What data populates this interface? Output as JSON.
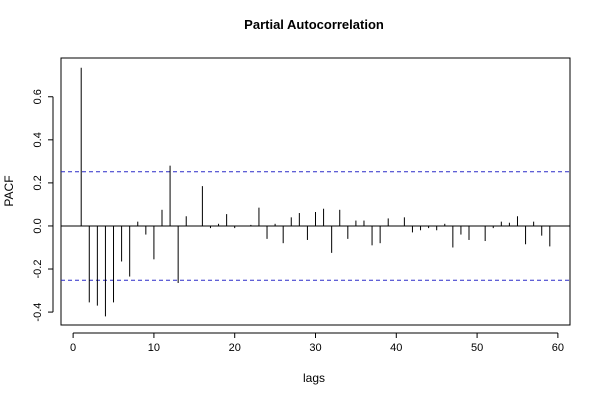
{
  "chart_data": {
    "type": "bar",
    "title": "Partial Autocorrelation",
    "xlabel": "lags",
    "ylabel": "PACF",
    "xlim": [
      -1.5,
      61.5
    ],
    "ylim": [
      -0.46,
      0.78
    ],
    "xticks": [
      0,
      10,
      20,
      30,
      40,
      50,
      60
    ],
    "yticks": [
      -0.4,
      -0.2,
      0.0,
      0.2,
      0.4,
      0.6
    ],
    "x": [
      1,
      2,
      3,
      4,
      5,
      6,
      7,
      8,
      9,
      10,
      11,
      12,
      13,
      14,
      15,
      16,
      17,
      18,
      19,
      20,
      21,
      22,
      23,
      24,
      25,
      26,
      27,
      28,
      29,
      30,
      31,
      32,
      33,
      34,
      35,
      36,
      37,
      38,
      39,
      40,
      41,
      42,
      43,
      44,
      45,
      46,
      47,
      48,
      49,
      50,
      51,
      52,
      53,
      54,
      55,
      56,
      57,
      58,
      59
    ],
    "values": [
      0.735,
      -0.355,
      -0.37,
      -0.42,
      -0.355,
      -0.165,
      -0.235,
      0.02,
      -0.04,
      -0.155,
      0.075,
      0.28,
      -0.265,
      0.045,
      0.0,
      0.185,
      -0.01,
      0.01,
      0.055,
      -0.01,
      0.0,
      0.005,
      0.085,
      -0.06,
      0.01,
      -0.08,
      0.04,
      0.06,
      -0.065,
      0.065,
      0.08,
      -0.125,
      0.075,
      -0.06,
      0.025,
      0.025,
      -0.09,
      -0.08,
      0.035,
      0.0,
      0.04,
      -0.03,
      -0.02,
      -0.01,
      -0.02,
      0.01,
      -0.1,
      -0.04,
      -0.065,
      0.0,
      -0.07,
      -0.01,
      0.02,
      0.015,
      0.045,
      -0.085,
      0.02,
      -0.045,
      -0.095
    ],
    "confidence_band": 0.252,
    "grid": false,
    "legend": "none"
  }
}
